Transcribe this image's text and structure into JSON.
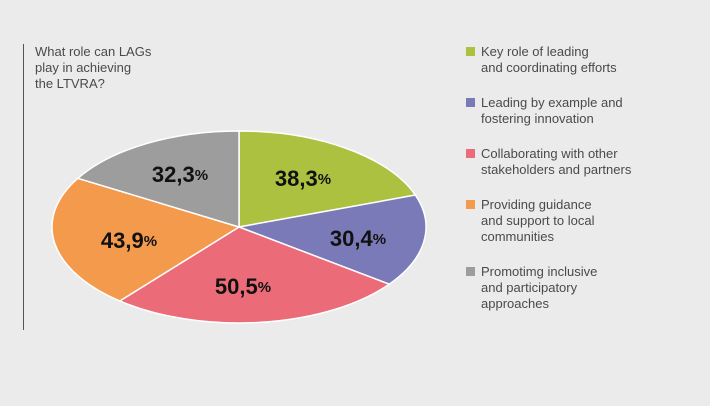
{
  "question_lines": [
    "What role can LAGs",
    "play in achieving",
    "the LTVRA?"
  ],
  "chart_data": {
    "type": "pie",
    "title": "What role can LAGs play in achieving the LTVRA?",
    "slices": [
      {
        "label": "Key role of leading and coordinating efforts",
        "value": 38.3,
        "display": "38,3",
        "color": "#adc140"
      },
      {
        "label": "Leading by example and fostering innovation",
        "value": 30.4,
        "display": "30,4",
        "color": "#7b7ab8"
      },
      {
        "label": "Collaborating with other stakeholders and partners",
        "value": 50.5,
        "display": "50,5",
        "color": "#ec6b78"
      },
      {
        "label": "Providing guidance and support to local communities",
        "value": 43.9,
        "display": "43,9",
        "color": "#f39a4c"
      },
      {
        "label": "Promotimg inclusive and participatory approaches",
        "value": 32.3,
        "display": "32,3",
        "color": "#9d9d9d"
      }
    ],
    "percent_sign": "%"
  },
  "legend": [
    {
      "lines": [
        "Key role of leading",
        "and coordinating efforts"
      ]
    },
    {
      "lines": [
        "Leading by example and",
        "fostering innovation"
      ]
    },
    {
      "lines": [
        "Collaborating with other",
        "stakeholders and partners"
      ]
    },
    {
      "lines": [
        "Providing guidance",
        "and support to local",
        "communities"
      ]
    },
    {
      "lines": [
        "Promotimg inclusive",
        "and participatory",
        "approaches"
      ]
    }
  ]
}
